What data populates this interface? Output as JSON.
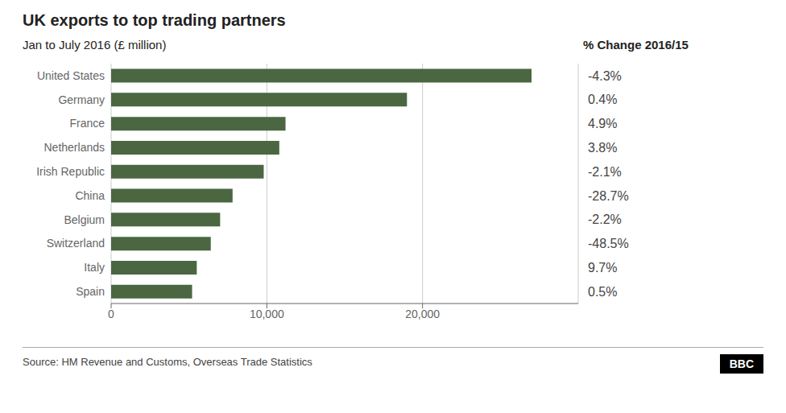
{
  "chart_data": {
    "type": "bar",
    "orientation": "horizontal",
    "title": "UK exports to top trading partners",
    "subtitle": "Jan to July 2016 (£ million)",
    "categories": [
      "United States",
      "Germany",
      "France",
      "Netherlands",
      "Irish Republic",
      "China",
      "Belgium",
      "Switzerland",
      "Italy",
      "Spain"
    ],
    "values": [
      27000,
      19000,
      11200,
      10800,
      9800,
      7800,
      7000,
      6400,
      5500,
      5200
    ],
    "color": "#4a6741",
    "xlim": [
      0,
      30000
    ],
    "xticks": [
      0,
      {
        "value": 10000,
        "label": "10,000"
      },
      {
        "value": 20000,
        "label": "20,000"
      }
    ],
    "grid": true,
    "pct_change_label": "% Change 2016/15",
    "pct_changes": [
      "-4.3%",
      "0.4%",
      "4.9%",
      "3.8%",
      "-2.1%",
      "-28.7%",
      "-2.2%",
      "-48.5%",
      "9.7%",
      "0.5%"
    ],
    "source": "Source: HM Revenue and Customs, Overseas Trade Statistics",
    "logo": "BBC"
  }
}
